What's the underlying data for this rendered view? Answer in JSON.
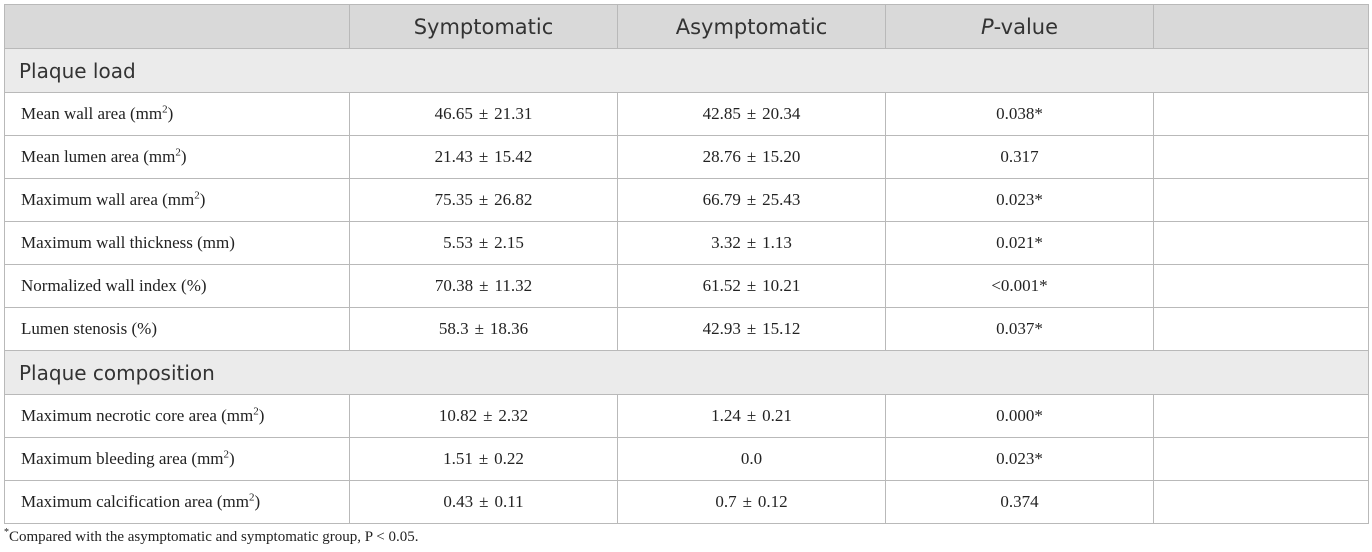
{
  "header": {
    "col0": "",
    "col1": "Symptomatic",
    "col2": "Asymptomatic",
    "col3_italic": "P",
    "col3_rest": "-value",
    "col4": ""
  },
  "sections": [
    {
      "title": "Plaque load",
      "rows": [
        {
          "label": "Mean wall area (mm",
          "sup": "2",
          "suffix": ")",
          "sym_mean": "46.65",
          "sym_sd": "21.31",
          "asym_mean": "42.85",
          "asym_sd": "20.34",
          "p": "0.038*"
        },
        {
          "label": "Mean lumen area (mm",
          "sup": "2",
          "suffix": ")",
          "sym_mean": "21.43",
          "sym_sd": "15.42",
          "asym_mean": "28.76",
          "asym_sd": "15.20",
          "p": "0.317"
        },
        {
          "label": "Maximum wall area (mm",
          "sup": "2",
          "suffix": ")",
          "sym_mean": "75.35",
          "sym_sd": "26.82",
          "asym_mean": "66.79",
          "asym_sd": "25.43",
          "p": "0.023*"
        },
        {
          "label": "Maximum wall thickness (mm)",
          "sup": "",
          "suffix": "",
          "sym_mean": "5.53",
          "sym_sd": "2.15",
          "asym_mean": "3.32",
          "asym_sd": "1.13",
          "p": "0.021*"
        },
        {
          "label": "Normalized wall index (%)",
          "sup": "",
          "suffix": "",
          "sym_mean": "70.38",
          "sym_sd": "11.32",
          "asym_mean": "61.52",
          "asym_sd": "10.21",
          "p": "<0.001*"
        },
        {
          "label": "Lumen stenosis (%)",
          "sup": "",
          "suffix": "",
          "sym_mean": "58.3",
          "sym_sd": "18.36",
          "asym_mean": "42.93",
          "asym_sd": "15.12",
          "p": "0.037*"
        }
      ]
    },
    {
      "title": "Plaque composition",
      "rows": [
        {
          "label": "Maximum necrotic core area (mm",
          "sup": "2",
          "suffix": ")",
          "sym_mean": "10.82",
          "sym_sd": "2.32",
          "asym_mean": "1.24",
          "asym_sd": "0.21",
          "p": "0.000*"
        },
        {
          "label": "Maximum bleeding area (mm",
          "sup": "2",
          "suffix": ")",
          "sym_mean": "1.51",
          "sym_sd": "0.22",
          "asym_mean": "0.0",
          "asym_sd": "",
          "p": "0.023*"
        },
        {
          "label": "Maximum calcification area (mm",
          "sup": "2",
          "suffix": ")",
          "sym_mean": "0.43",
          "sym_sd": "0.11",
          "asym_mean": "0.7",
          "asym_sd": "0.12",
          "p": "0.374"
        }
      ]
    }
  ],
  "pm_sign": "±",
  "footnote": {
    "marker": "*",
    "text": "Compared with the asymptomatic and symptomatic group, P < 0.05."
  }
}
